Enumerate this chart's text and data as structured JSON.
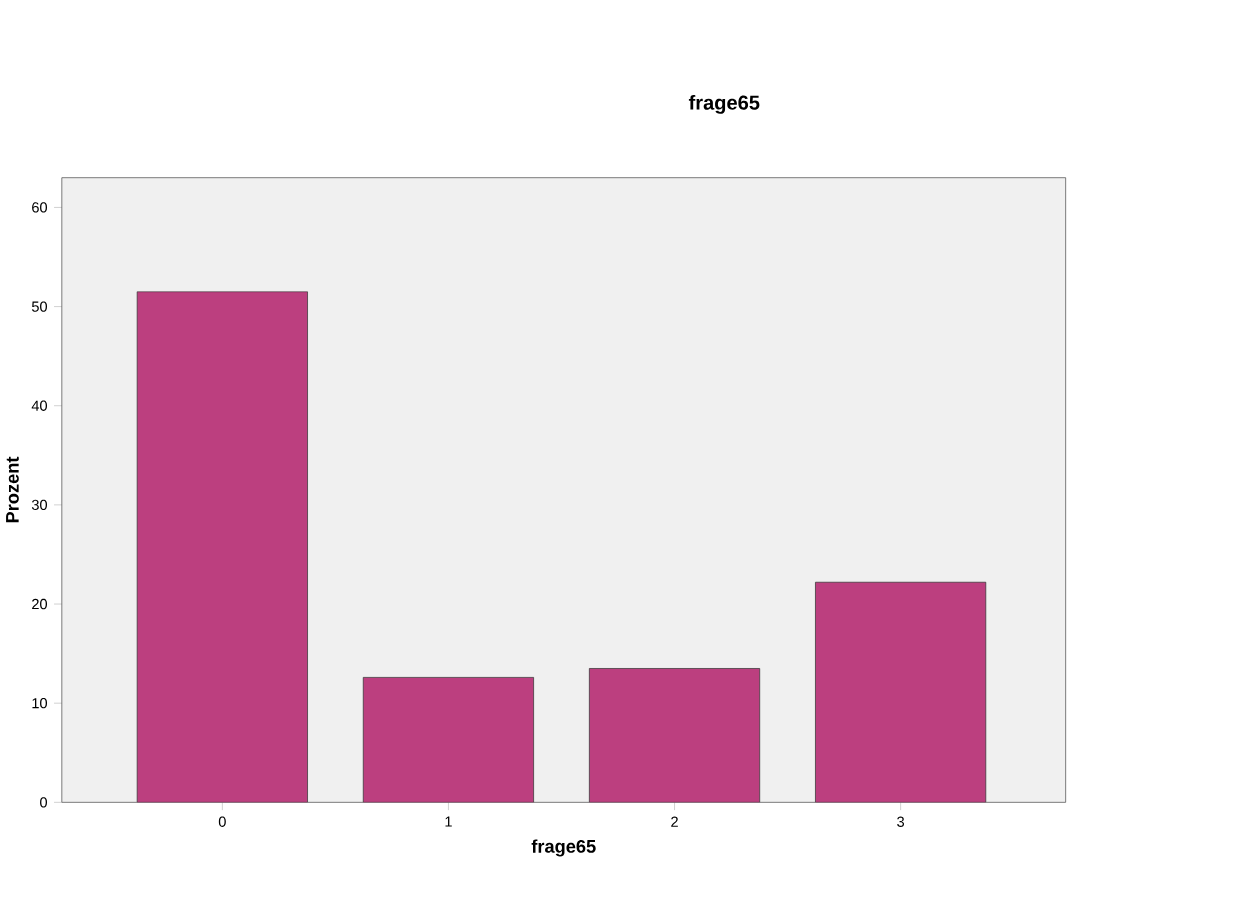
{
  "chart_data": {
    "type": "bar",
    "title": "frage65",
    "xlabel": "frage65",
    "ylabel": "Prozent",
    "categories": [
      "0",
      "1",
      "2",
      "3"
    ],
    "values": [
      51.5,
      12.6,
      13.5,
      22.2
    ],
    "color": "#bc3f7f",
    "ylim": [
      0,
      63
    ],
    "yticks": [
      0,
      10,
      20,
      30,
      40,
      50,
      60
    ],
    "grid": false
  }
}
